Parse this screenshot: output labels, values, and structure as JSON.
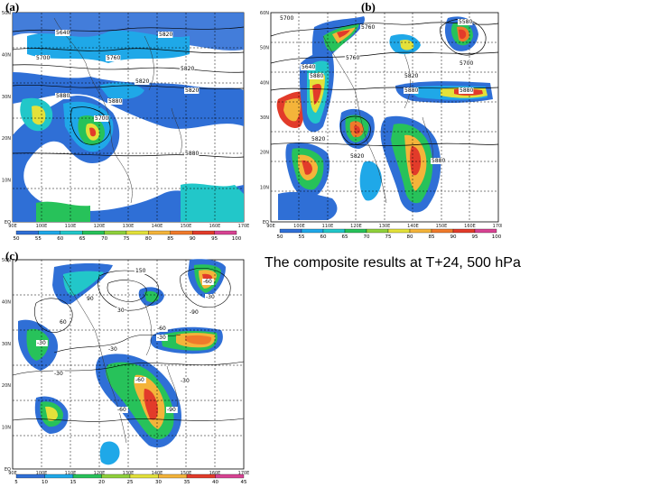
{
  "caption": "The composite results at T+24, 500 hPa",
  "panels": [
    {
      "label": "(a)",
      "lat_ticks": [
        "50N",
        "40N",
        "30N",
        "20N",
        "10N",
        "EQ"
      ],
      "lon_ticks": [
        "90E",
        "100E",
        "110E",
        "120E",
        "130E",
        "140E",
        "150E",
        "160E",
        "170E"
      ],
      "colorbar": [
        "50",
        "55",
        "60",
        "65",
        "70",
        "75",
        "80",
        "85",
        "90",
        "95",
        "100"
      ],
      "contour_labels": [
        "5640",
        "5700",
        "5760",
        "5820",
        "5880",
        "5700",
        "5820",
        "5820",
        "5820",
        "5880",
        "5880"
      ]
    },
    {
      "label": "(b)",
      "lat_ticks": [
        "60N",
        "50N",
        "40N",
        "30N",
        "20N",
        "10N",
        "EQ"
      ],
      "lon_ticks": [
        "90E",
        "100E",
        "110E",
        "120E",
        "130E",
        "140E",
        "150E",
        "160E",
        "170E"
      ],
      "colorbar": [
        "50",
        "55",
        "60",
        "65",
        "70",
        "75",
        "80",
        "85",
        "90",
        "95",
        "100"
      ],
      "contour_labels": [
        "5700",
        "5760",
        "5880",
        "5640",
        "5760",
        "5820",
        "5700",
        "5880",
        "5880",
        "5580",
        "5820",
        "5820",
        "5880"
      ]
    },
    {
      "label": "(c)",
      "lat_ticks": [
        "50N",
        "40N",
        "30N",
        "20N",
        "10N",
        "EQ"
      ],
      "lon_ticks": [
        "90E",
        "100E",
        "110E",
        "120E",
        "130E",
        "140E",
        "150E",
        "160E",
        "170E"
      ],
      "colorbar": [
        "5",
        "10",
        "15",
        "20",
        "25",
        "30",
        "35",
        "40",
        "45"
      ],
      "contour_labels": [
        "150",
        "90",
        "60",
        "30",
        "-30",
        "-60",
        "-90",
        "-30",
        "-60",
        "-30",
        "-30",
        "-60",
        "-90",
        "-60",
        "-30",
        "-30"
      ]
    }
  ],
  "colors": {
    "scale": [
      "#2f6fd6",
      "#1fa8e8",
      "#22c7c9",
      "#27c25a",
      "#8fd13b",
      "#e3e13a",
      "#f4b43a",
      "#f07a2b",
      "#e23b2a",
      "#d84393"
    ]
  }
}
